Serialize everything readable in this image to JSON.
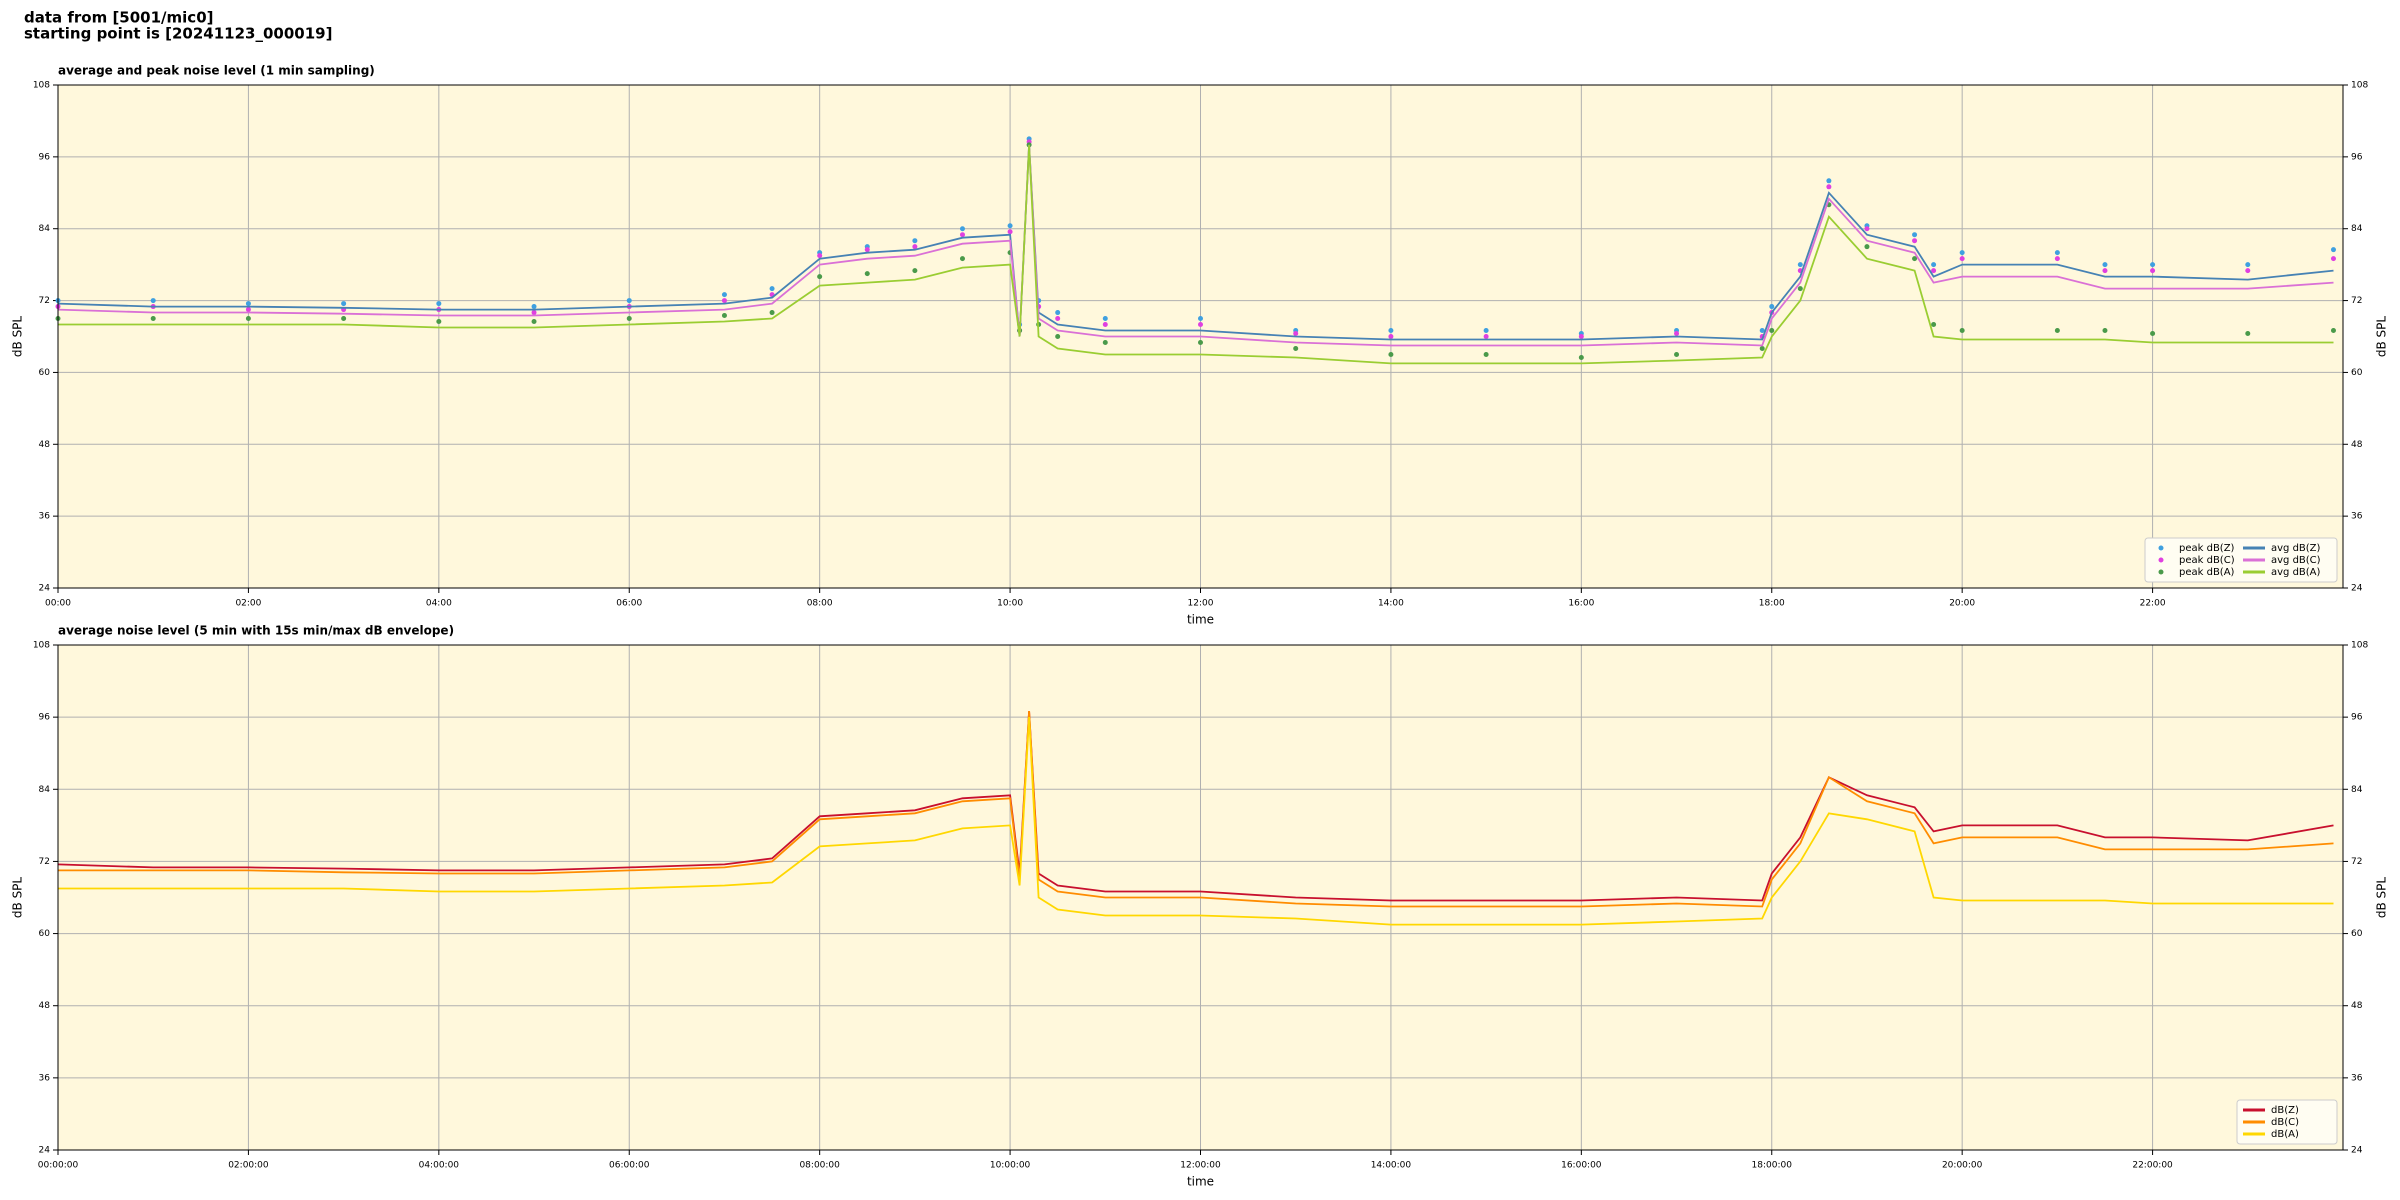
{
  "header": {
    "line1": "data from [5001/mic0]",
    "line2": "starting point is [20241123_000019]"
  },
  "chart_data": [
    {
      "type": "line",
      "title": "average and peak noise level (1 min sampling)",
      "x_label": "time",
      "y_label": "dB SPL",
      "x": [
        0,
        1,
        2,
        3,
        4,
        5,
        6,
        7,
        7.5,
        8,
        8.5,
        9,
        9.5,
        10,
        10.1,
        10.2,
        10.3,
        10.5,
        11,
        12,
        13,
        14,
        15,
        16,
        17,
        17.9,
        18,
        18.3,
        18.6,
        19,
        19.5,
        19.7,
        20,
        21,
        21.5,
        22,
        23,
        23.9
      ],
      "xlim": [
        0,
        24
      ],
      "xticks": [
        {
          "value": 0,
          "label": "00:00"
        },
        {
          "value": 2,
          "label": "02:00"
        },
        {
          "value": 4,
          "label": "04:00"
        },
        {
          "value": 6,
          "label": "06:00"
        },
        {
          "value": 8,
          "label": "08:00"
        },
        {
          "value": 10,
          "label": "10:00"
        },
        {
          "value": 12,
          "label": "12:00"
        },
        {
          "value": 14,
          "label": "14:00"
        },
        {
          "value": 16,
          "label": "16:00"
        },
        {
          "value": 18,
          "label": "18:00"
        },
        {
          "value": 20,
          "label": "20:00"
        },
        {
          "value": 22,
          "label": "22:00"
        }
      ],
      "ylim": [
        24,
        108
      ],
      "yticks": [
        24,
        36,
        48,
        60,
        72,
        84,
        96,
        108
      ],
      "grid": true,
      "legend": "lower right",
      "background": "#fff8dc",
      "series": [
        {
          "name": "peak dB(Z)",
          "color": "#3fa0e0",
          "style": "dots",
          "values": [
            72,
            72,
            71.5,
            71.5,
            71.5,
            71,
            72,
            73,
            74,
            80,
            81,
            82,
            84,
            84.5,
            68,
            99,
            72,
            70,
            69,
            69,
            67,
            67,
            67,
            66.5,
            67,
            67,
            71,
            78,
            92,
            84.5,
            83,
            78,
            80,
            80,
            78,
            78,
            78,
            80.5
          ]
        },
        {
          "name": "peak dB(C)",
          "color": "#e040e0",
          "style": "dots",
          "values": [
            71,
            71,
            70.5,
            70.5,
            70.5,
            70,
            71,
            72,
            73,
            79.5,
            80.5,
            81,
            83,
            83.5,
            67,
            98.5,
            71,
            69,
            68,
            68,
            66.5,
            66,
            66,
            66,
            66.5,
            66,
            70,
            77,
            91,
            84,
            82,
            77,
            79,
            79,
            77,
            77,
            77,
            79
          ]
        },
        {
          "name": "peak dB(A)",
          "color": "#4a9a4a",
          "style": "dots",
          "values": [
            69,
            69,
            69,
            69,
            68.5,
            68.5,
            69,
            69.5,
            70,
            76,
            76.5,
            77,
            79,
            80,
            67,
            98,
            68,
            66,
            65,
            65,
            64,
            63,
            63,
            62.5,
            63,
            64,
            67,
            74,
            88,
            81,
            79,
            68,
            67,
            67,
            67,
            66.5,
            66.5,
            67
          ]
        },
        {
          "name": "avg dB(Z)",
          "color": "#4682b4",
          "style": "line",
          "values": [
            71.5,
            71,
            71,
            70.8,
            70.5,
            70.5,
            71,
            71.5,
            72.5,
            79,
            80,
            80.5,
            82.5,
            83,
            66,
            98,
            70,
            68,
            67,
            67,
            66,
            65.5,
            65.5,
            65.5,
            66,
            65.5,
            70,
            76,
            90,
            83,
            81,
            76,
            78,
            78,
            76,
            76,
            75.5,
            77
          ]
        },
        {
          "name": "avg dB(C)",
          "color": "#da70d6",
          "style": "line",
          "values": [
            70.5,
            70,
            70,
            69.8,
            69.5,
            69.5,
            70,
            70.5,
            71.5,
            78,
            79,
            79.5,
            81.5,
            82,
            66,
            98,
            69,
            67,
            66,
            66,
            65,
            64.5,
            64.5,
            64.5,
            65,
            64.5,
            69,
            75,
            89,
            82,
            80,
            75,
            76,
            76,
            74,
            74,
            74,
            75
          ]
        },
        {
          "name": "avg dB(A)",
          "color": "#9acd32",
          "style": "line",
          "values": [
            68,
            68,
            68,
            68,
            67.5,
            67.5,
            68,
            68.5,
            69,
            74.5,
            75,
            75.5,
            77.5,
            78,
            66,
            98,
            66,
            64,
            63,
            63,
            62.5,
            61.5,
            61.5,
            61.5,
            62,
            62.5,
            66,
            72,
            86,
            79,
            77,
            66,
            65.5,
            65.5,
            65.5,
            65,
            65,
            65
          ]
        }
      ]
    },
    {
      "type": "line",
      "title": "average noise level (5 min with 15s min/max dB envelope)",
      "x_label": "time",
      "y_label": "dB SPL",
      "x": [
        0,
        1,
        2,
        3,
        4,
        5,
        6,
        7,
        7.5,
        8,
        8.5,
        9,
        9.5,
        10,
        10.1,
        10.2,
        10.3,
        10.5,
        11,
        12,
        13,
        14,
        15,
        16,
        17,
        17.9,
        18,
        18.3,
        18.6,
        19,
        19.5,
        19.7,
        20,
        21,
        21.5,
        22,
        23,
        23.9
      ],
      "xlim": [
        0,
        24
      ],
      "xticks": [
        {
          "value": 0,
          "label": "00:00:00"
        },
        {
          "value": 2,
          "label": "02:00:00"
        },
        {
          "value": 4,
          "label": "04:00:00"
        },
        {
          "value": 6,
          "label": "06:00:00"
        },
        {
          "value": 8,
          "label": "08:00:00"
        },
        {
          "value": 10,
          "label": "10:00:00"
        },
        {
          "value": 12,
          "label": "12:00:00"
        },
        {
          "value": 14,
          "label": "14:00:00"
        },
        {
          "value": 16,
          "label": "16:00:00"
        },
        {
          "value": 18,
          "label": "18:00:00"
        },
        {
          "value": 20,
          "label": "20:00:00"
        },
        {
          "value": 22,
          "label": "22:00:00"
        }
      ],
      "ylim": [
        24,
        108
      ],
      "yticks": [
        24,
        36,
        48,
        60,
        72,
        84,
        96,
        108
      ],
      "grid": true,
      "legend": "lower right",
      "background": "#fff8dc",
      "series": [
        {
          "name": "dB(Z)",
          "color": "#c8102e",
          "style": "line",
          "values": [
            71.5,
            71,
            71,
            70.8,
            70.5,
            70.5,
            71,
            71.5,
            72.5,
            79.5,
            80,
            80.5,
            82.5,
            83,
            70,
            97,
            70,
            68,
            67,
            67,
            66,
            65.5,
            65.5,
            65.5,
            66,
            65.5,
            70,
            76,
            86,
            83,
            81,
            77,
            78,
            78,
            76,
            76,
            75.5,
            78
          ]
        },
        {
          "name": "dB(C)",
          "color": "#ff8c00",
          "style": "line",
          "values": [
            70.5,
            70.5,
            70.5,
            70.2,
            70,
            70,
            70.5,
            71,
            72,
            79,
            79.5,
            80,
            82,
            82.5,
            69,
            97,
            69,
            67,
            66,
            66,
            65,
            64.5,
            64.5,
            64.5,
            65,
            64.5,
            69,
            75,
            86,
            82,
            80,
            75,
            76,
            76,
            74,
            74,
            74,
            75
          ]
        },
        {
          "name": "dB(A)",
          "color": "#ffd700",
          "style": "line",
          "values": [
            67.5,
            67.5,
            67.5,
            67.5,
            67,
            67,
            67.5,
            68,
            68.5,
            74.5,
            75,
            75.5,
            77.5,
            78,
            68,
            96,
            66,
            64,
            63,
            63,
            62.5,
            61.5,
            61.5,
            61.5,
            62,
            62.5,
            66,
            72,
            80,
            79,
            77,
            66,
            65.5,
            65.5,
            65.5,
            65,
            65,
            65
          ]
        }
      ]
    }
  ]
}
